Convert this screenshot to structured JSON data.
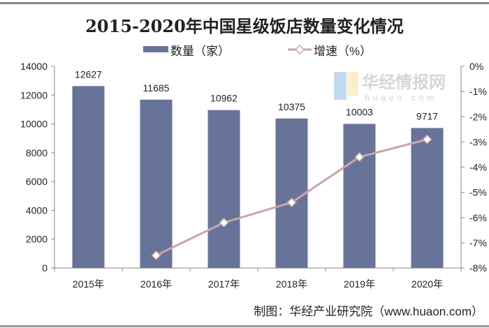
{
  "chart_data": {
    "type": "bar+line",
    "title": "2015-2020年中国星级饭店数量变化情况",
    "categories": [
      "2015年",
      "2016年",
      "2017年",
      "2018年",
      "2019年",
      "2020年"
    ],
    "series": [
      {
        "name": "数量（家）",
        "type": "bar",
        "axis": "left",
        "color": "#68739a",
        "values": [
          12627,
          11685,
          10962,
          10375,
          10003,
          9717
        ]
      },
      {
        "name": "增速（%）",
        "type": "line",
        "axis": "right",
        "color": "#c9a6a8",
        "marker": "diamond",
        "values": [
          null,
          -7.5,
          -6.2,
          -5.4,
          -3.6,
          -2.9
        ]
      }
    ],
    "y_left": {
      "ylim": [
        0,
        14000
      ],
      "ticks": [
        "0",
        "2000",
        "4000",
        "6000",
        "8000",
        "10000",
        "12000",
        "14000"
      ]
    },
    "y_right": {
      "ylim": [
        -8,
        0
      ],
      "ticks": [
        "-8%",
        "-7%",
        "-6%",
        "-5%",
        "-4%",
        "-3%",
        "-2%",
        "-1%",
        "0%"
      ]
    },
    "legend": "top-center",
    "grid": false
  },
  "source": "制图：华经产业研究院（www.huaon.com）",
  "watermark": {
    "text": "华经情报网",
    "sub": "huaon.com"
  }
}
